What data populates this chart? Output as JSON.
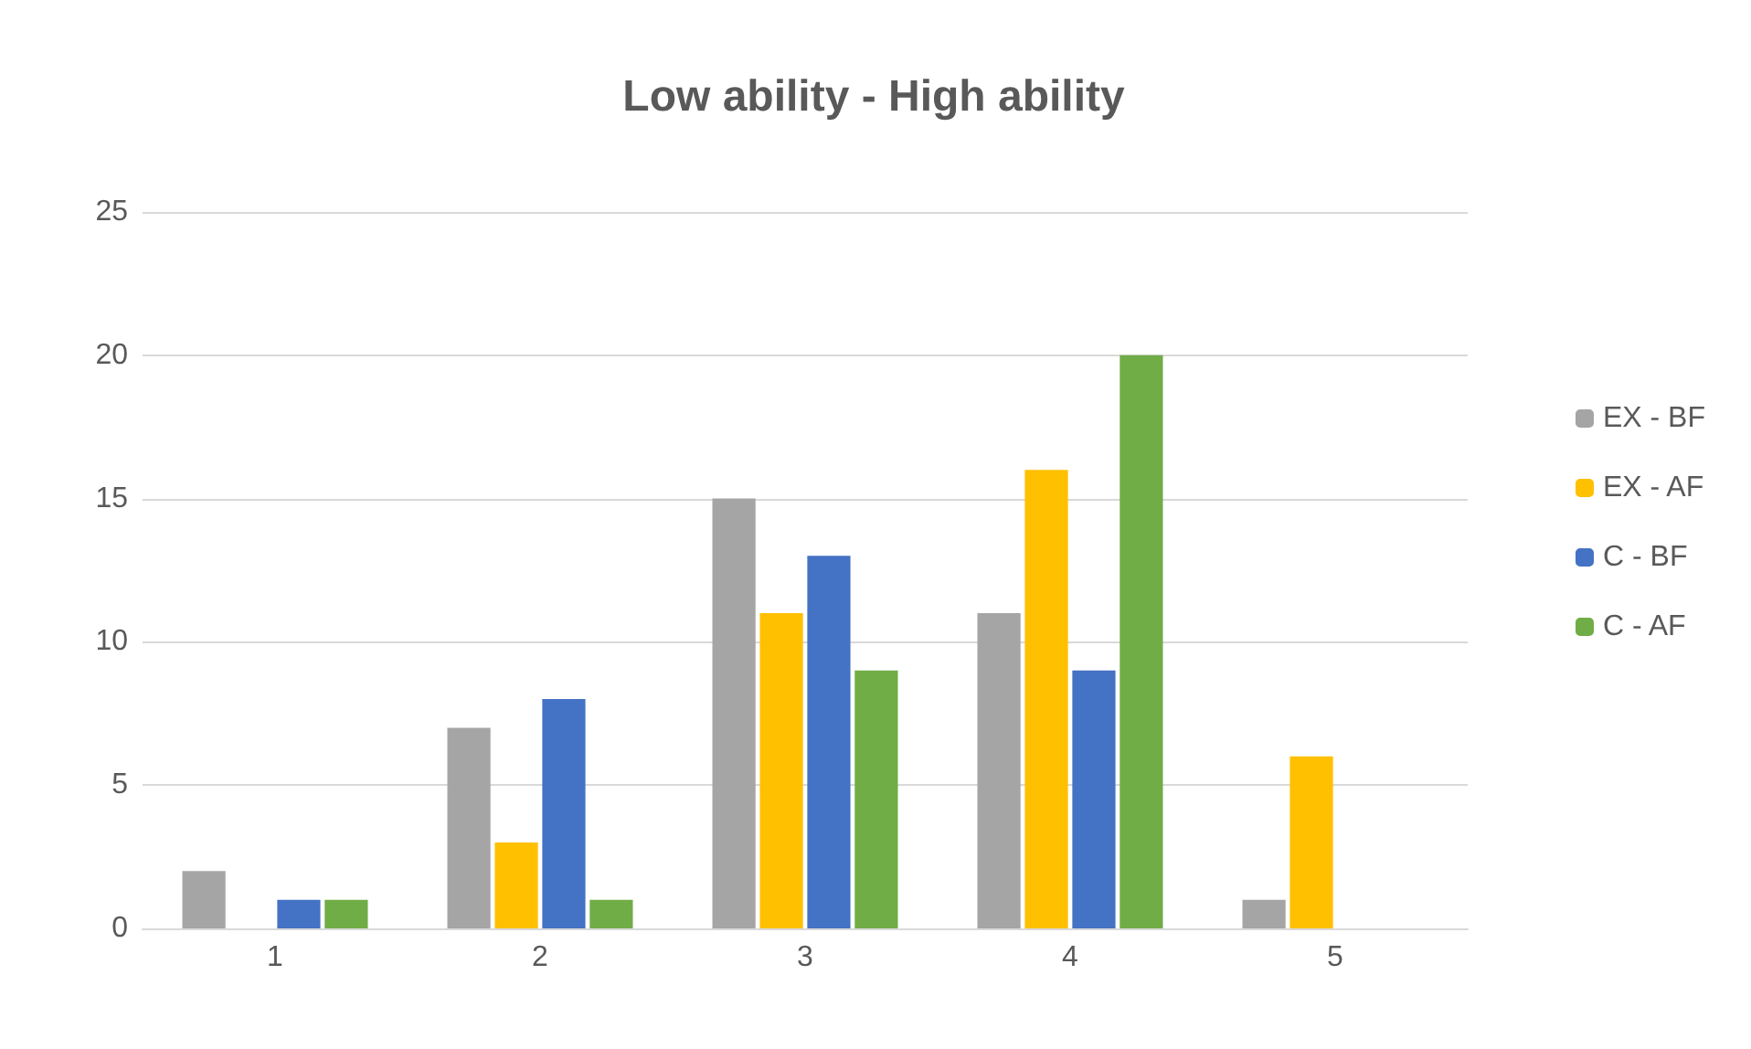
{
  "chart_data": {
    "type": "bar",
    "title": "Low ability - High ability",
    "categories": [
      "1",
      "2",
      "3",
      "4",
      "5"
    ],
    "series": [
      {
        "name": "EX - BF",
        "color": "#a5a5a5",
        "values": [
          2,
          7,
          15,
          11,
          1
        ]
      },
      {
        "name": "EX - AF",
        "color": "#ffc000",
        "values": [
          0,
          3,
          11,
          16,
          6
        ]
      },
      {
        "name": "C - BF",
        "color": "#4472c4",
        "values": [
          1,
          8,
          13,
          9,
          0
        ]
      },
      {
        "name": "C - AF",
        "color": "#70ad47",
        "values": [
          1,
          1,
          9,
          20,
          0
        ]
      }
    ],
    "ylim": [
      0,
      25
    ],
    "yticks": [
      0,
      5,
      10,
      15,
      20,
      25
    ],
    "grid": "y",
    "legend": "right"
  }
}
